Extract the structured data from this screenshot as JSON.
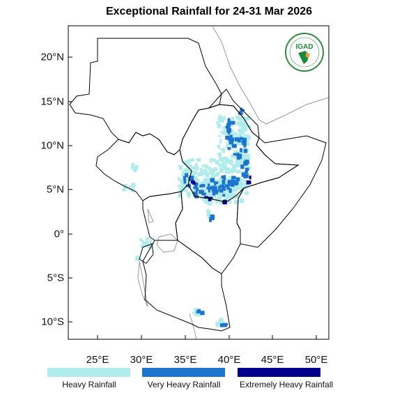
{
  "title": "Exceptional Rainfall for 24-31 Mar 2026",
  "map": {
    "lat_labels": [
      "20°N",
      "15°N",
      "10°N",
      "5°N",
      "0°",
      "5°S",
      "10°S"
    ],
    "lon_labels": [
      "25°E",
      "30°E",
      "35°E",
      "40°E",
      "45°E",
      "50°E"
    ],
    "lon_range": [
      21.7,
      51.4
    ],
    "lat_range": [
      -12,
      23.5
    ]
  },
  "logo": {
    "text": "IGAD"
  },
  "legend": [
    {
      "label": "Heavy Rainfall",
      "color": "#b0ecec"
    },
    {
      "label": "Very Heavy Rainfall",
      "color": "#1c74cf"
    },
    {
      "label": "Extremely Heavy Rainfall",
      "color": "#00008b"
    }
  ]
}
